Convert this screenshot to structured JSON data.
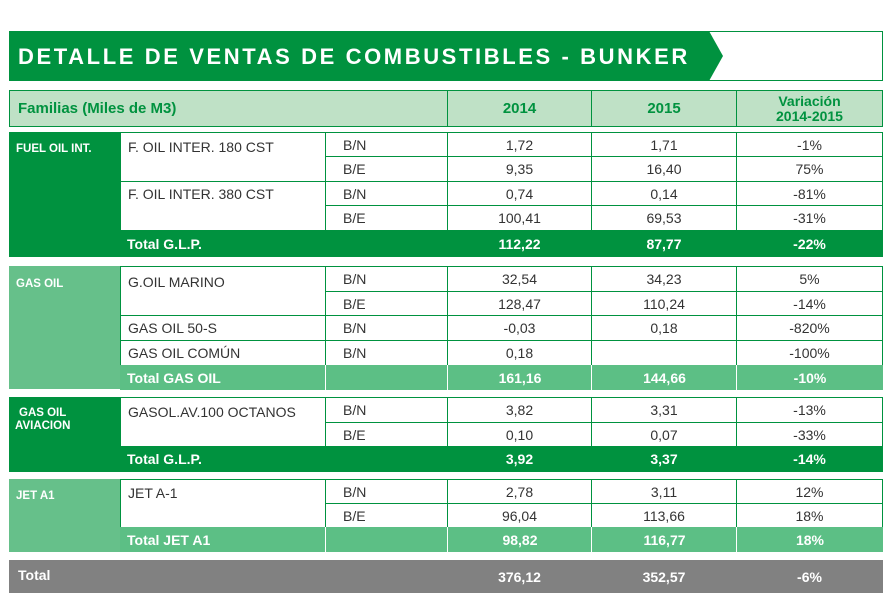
{
  "title": "DETALLE DE VENTAS DE COMBUSTIBLES - BUNKER",
  "header": {
    "familias": "Familias (Miles de M3)",
    "y2014": "2014",
    "y2015": "2015",
    "var_line1": "Variación",
    "var_line2": "2014-2015"
  },
  "fuel_oil": {
    "family": "FUEL OIL INT.",
    "p1": "F. OIL INTER. 180 CST",
    "p2": "F. OIL INTER. 380 CST",
    "rows": [
      {
        "type": "B/N",
        "v2014": "1,72",
        "v2015": "1,71",
        "var": "-1%"
      },
      {
        "type": "B/E",
        "v2014": "9,35",
        "v2015": "16,40",
        "var": "75%"
      },
      {
        "type": "B/N",
        "v2014": "0,74",
        "v2015": "0,14",
        "var": "-81%"
      },
      {
        "type": "B/E",
        "v2014": "100,41",
        "v2015": "69,53",
        "var": "-31%"
      }
    ],
    "total": {
      "label": "Total G.L.P.",
      "v2014": "112,22",
      "v2015": "87,77",
      "var": "-22%"
    }
  },
  "gas_oil": {
    "family": "GAS OIL",
    "p1": "G.OIL MARINO",
    "p2": "GAS OIL 50-S",
    "p3": "GAS OIL COMÚN",
    "rows": [
      {
        "type": "B/N",
        "v2014": "32,54",
        "v2015": "34,23",
        "var": "5%"
      },
      {
        "type": "B/E",
        "v2014": "128,47",
        "v2015": "110,24",
        "var": "-14%"
      },
      {
        "type": "B/N",
        "v2014": "-0,03",
        "v2015": "0,18",
        "var": "-820%"
      },
      {
        "type": "B/N",
        "v2014": "0,18",
        "v2015": "",
        "var": "-100%"
      }
    ],
    "total": {
      "label": "Total GAS OIL",
      "v2014": "161,16",
      "v2015": "144,66",
      "var": "-10%"
    }
  },
  "gas_oil_aviacion": {
    "family_line1": "GAS OIL",
    "family_line2": "AVIACION",
    "p1": "GASOL.AV.100 OCTANOS",
    "rows": [
      {
        "type": "B/N",
        "v2014": "3,82",
        "v2015": "3,31",
        "var": "-13%"
      },
      {
        "type": "B/E",
        "v2014": "0,10",
        "v2015": "0,07",
        "var": "-33%"
      }
    ],
    "total": {
      "label": "Total G.L.P.",
      "v2014": "3,92",
      "v2015": "3,37",
      "var": "-14%"
    }
  },
  "jet_a1": {
    "family": "JET A1",
    "p1": "JET A-1",
    "rows": [
      {
        "type": "B/N",
        "v2014": "2,78",
        "v2015": "3,11",
        "var": "12%"
      },
      {
        "type": "B/E",
        "v2014": "96,04",
        "v2015": "113,66",
        "var": "18%"
      }
    ],
    "total": {
      "label": "Total JET A1",
      "v2014": "98,82",
      "v2015": "116,77",
      "var": "18%"
    }
  },
  "grand_total": {
    "label": "Total",
    "v2014": "376,12",
    "v2015": "352,57",
    "var": "-6%"
  },
  "colors": {
    "green": "#00923f",
    "light_green": "#66c08a",
    "header_bg": "#bfe1c6",
    "grey": "#818181"
  }
}
